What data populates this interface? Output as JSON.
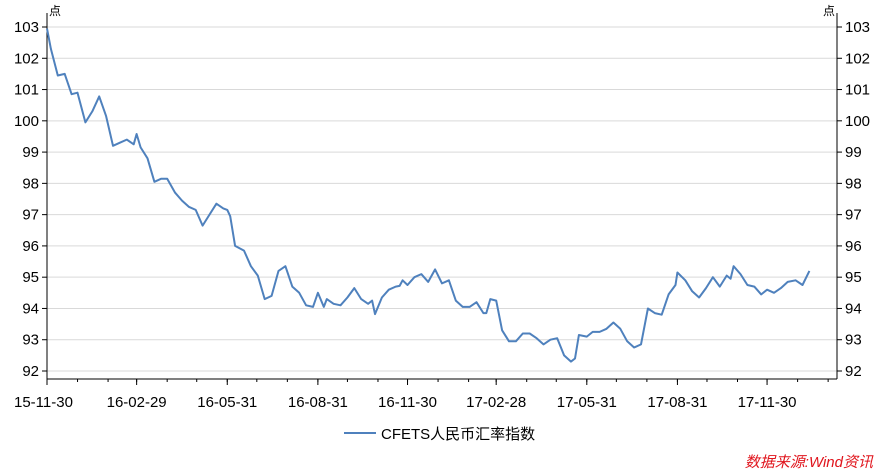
{
  "chart_data": {
    "type": "line",
    "title": "",
    "xlabel": "",
    "ylabel": "",
    "y_unit_left": "点",
    "y_unit_right": "点",
    "ylim": [
      92,
      103
    ],
    "yticks": [
      "103",
      "102",
      "101",
      "100",
      "99",
      "98",
      "97",
      "96",
      "95",
      "94",
      "93",
      "92"
    ],
    "xlim": [
      "2015-11-30",
      "2018-02-09"
    ],
    "xticks": [
      {
        "date": "2015-11-30",
        "label": "15-11-30"
      },
      {
        "date": "2016-02-29",
        "label": "16-02-29"
      },
      {
        "date": "2016-05-31",
        "label": "16-05-31"
      },
      {
        "date": "2016-08-31",
        "label": "16-08-31"
      },
      {
        "date": "2016-11-30",
        "label": "16-11-30"
      },
      {
        "date": "2017-02-28",
        "label": "17-02-28"
      },
      {
        "date": "2017-05-31",
        "label": "17-05-31"
      },
      {
        "date": "2017-08-31",
        "label": "17-08-31"
      },
      {
        "date": "2017-11-30",
        "label": "17-11-30"
      }
    ],
    "grid": true,
    "legend_position": "bottom",
    "series": [
      {
        "name": "CFETS人民币汇率指数",
        "color": "#4f81bd",
        "points": [
          [
            "2015-11-30",
            102.95
          ],
          [
            "2015-12-04",
            102.3
          ],
          [
            "2015-12-11",
            101.45
          ],
          [
            "2015-12-18",
            101.5
          ],
          [
            "2015-12-25",
            100.85
          ],
          [
            "2015-12-31",
            100.9
          ],
          [
            "2016-01-08",
            99.95
          ],
          [
            "2016-01-15",
            100.3
          ],
          [
            "2016-01-22",
            100.78
          ],
          [
            "2016-01-29",
            100.15
          ],
          [
            "2016-02-05",
            99.2
          ],
          [
            "2016-02-12",
            99.3
          ],
          [
            "2016-02-19",
            99.4
          ],
          [
            "2016-02-26",
            99.25
          ],
          [
            "2016-02-29",
            99.58
          ],
          [
            "2016-03-04",
            99.15
          ],
          [
            "2016-03-11",
            98.8
          ],
          [
            "2016-03-18",
            98.05
          ],
          [
            "2016-03-25",
            98.15
          ],
          [
            "2016-03-31",
            98.15
          ],
          [
            "2016-04-08",
            97.7
          ],
          [
            "2016-04-15",
            97.45
          ],
          [
            "2016-04-22",
            97.25
          ],
          [
            "2016-04-29",
            97.15
          ],
          [
            "2016-05-06",
            96.65
          ],
          [
            "2016-05-13",
            97.0
          ],
          [
            "2016-05-20",
            97.35
          ],
          [
            "2016-05-27",
            97.2
          ],
          [
            "2016-05-31",
            97.15
          ],
          [
            "2016-06-03",
            96.95
          ],
          [
            "2016-06-08",
            96.0
          ],
          [
            "2016-06-17",
            95.85
          ],
          [
            "2016-06-24",
            95.35
          ],
          [
            "2016-07-01",
            95.05
          ],
          [
            "2016-07-08",
            94.3
          ],
          [
            "2016-07-15",
            94.4
          ],
          [
            "2016-07-22",
            95.2
          ],
          [
            "2016-07-29",
            95.35
          ],
          [
            "2016-08-05",
            94.7
          ],
          [
            "2016-08-12",
            94.5
          ],
          [
            "2016-08-19",
            94.1
          ],
          [
            "2016-08-26",
            94.05
          ],
          [
            "2016-08-31",
            94.5
          ],
          [
            "2016-09-06",
            94.05
          ],
          [
            "2016-09-09",
            94.3
          ],
          [
            "2016-09-16",
            94.15
          ],
          [
            "2016-09-23",
            94.1
          ],
          [
            "2016-09-30",
            94.35
          ],
          [
            "2016-10-07",
            94.65
          ],
          [
            "2016-10-14",
            94.3
          ],
          [
            "2016-10-21",
            94.15
          ],
          [
            "2016-10-25",
            94.25
          ],
          [
            "2016-10-28",
            93.82
          ],
          [
            "2016-11-04",
            94.35
          ],
          [
            "2016-11-11",
            94.6
          ],
          [
            "2016-11-18",
            94.7
          ],
          [
            "2016-11-22",
            94.72
          ],
          [
            "2016-11-25",
            94.9
          ],
          [
            "2016-11-30",
            94.75
          ],
          [
            "2016-12-07",
            95.0
          ],
          [
            "2016-12-14",
            95.1
          ],
          [
            "2016-12-21",
            94.85
          ],
          [
            "2016-12-28",
            95.25
          ],
          [
            "2017-01-04",
            94.8
          ],
          [
            "2017-01-11",
            94.9
          ],
          [
            "2017-01-18",
            94.25
          ],
          [
            "2017-01-25",
            94.05
          ],
          [
            "2017-02-01",
            94.05
          ],
          [
            "2017-02-08",
            94.2
          ],
          [
            "2017-02-15",
            93.85
          ],
          [
            "2017-02-18",
            93.85
          ],
          [
            "2017-02-22",
            94.3
          ],
          [
            "2017-02-28",
            94.25
          ],
          [
            "2017-03-06",
            93.3
          ],
          [
            "2017-03-13",
            92.95
          ],
          [
            "2017-03-20",
            92.95
          ],
          [
            "2017-03-27",
            93.2
          ],
          [
            "2017-04-03",
            93.2
          ],
          [
            "2017-04-10",
            93.05
          ],
          [
            "2017-04-17",
            92.85
          ],
          [
            "2017-04-24",
            93.0
          ],
          [
            "2017-05-01",
            93.05
          ],
          [
            "2017-05-08",
            92.5
          ],
          [
            "2017-05-15",
            92.3
          ],
          [
            "2017-05-19",
            92.4
          ],
          [
            "2017-05-23",
            93.15
          ],
          [
            "2017-05-31",
            93.1
          ],
          [
            "2017-06-06",
            93.25
          ],
          [
            "2017-06-13",
            93.25
          ],
          [
            "2017-06-20",
            93.35
          ],
          [
            "2017-06-27",
            93.55
          ],
          [
            "2017-07-04",
            93.35
          ],
          [
            "2017-07-11",
            92.95
          ],
          [
            "2017-07-18",
            92.75
          ],
          [
            "2017-07-25",
            92.85
          ],
          [
            "2017-08-01",
            94.0
          ],
          [
            "2017-08-08",
            93.85
          ],
          [
            "2017-08-15",
            93.8
          ],
          [
            "2017-08-22",
            94.45
          ],
          [
            "2017-08-29",
            94.75
          ],
          [
            "2017-08-31",
            95.15
          ],
          [
            "2017-09-08",
            94.9
          ],
          [
            "2017-09-15",
            94.55
          ],
          [
            "2017-09-22",
            94.35
          ],
          [
            "2017-09-29",
            94.65
          ],
          [
            "2017-10-06",
            95.0
          ],
          [
            "2017-10-13",
            94.7
          ],
          [
            "2017-10-20",
            95.05
          ],
          [
            "2017-10-24",
            94.95
          ],
          [
            "2017-10-27",
            95.35
          ],
          [
            "2017-11-03",
            95.1
          ],
          [
            "2017-11-10",
            94.75
          ],
          [
            "2017-11-17",
            94.7
          ],
          [
            "2017-11-24",
            94.45
          ],
          [
            "2017-11-30",
            94.6
          ],
          [
            "2017-12-07",
            94.5
          ],
          [
            "2017-12-14",
            94.65
          ],
          [
            "2017-12-21",
            94.85
          ],
          [
            "2017-12-29",
            94.9
          ],
          [
            "2018-01-05",
            94.75
          ],
          [
            "2018-01-12",
            95.2
          ]
        ]
      }
    ]
  },
  "source_note": "数据来源:Wind资讯"
}
